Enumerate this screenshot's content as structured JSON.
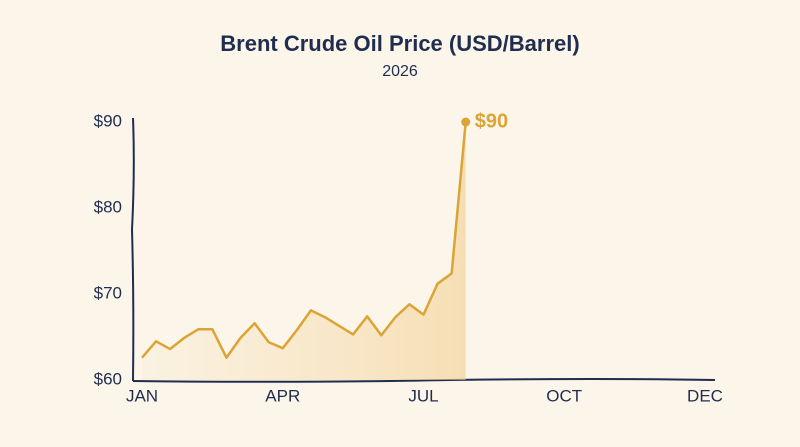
{
  "chart_data": {
    "type": "line",
    "title": "Brent Crude Oil Price (USD/Barrel)",
    "subtitle": "2026",
    "categories": [
      "JAN",
      null,
      null,
      null,
      null,
      null,
      null,
      null,
      null,
      null,
      "APR",
      null,
      null,
      null,
      null,
      null,
      null,
      null,
      null,
      null,
      "JUL",
      null,
      null,
      null,
      null,
      null,
      null,
      null,
      null,
      null,
      "OCT",
      null,
      null,
      null,
      null,
      null,
      null,
      null,
      null,
      null,
      "DEC"
    ],
    "values": [
      62.6,
      64.5,
      63.6,
      64.9,
      65.9,
      65.9,
      62.6,
      64.9,
      66.6,
      64.4,
      63.7,
      65.8,
      68.1,
      67.3,
      66.3,
      65.3,
      67.4,
      65.2,
      67.3,
      68.8,
      67.6,
      71.2,
      72.4,
      90,
      null,
      null,
      null,
      null,
      null,
      null,
      null,
      null,
      null,
      null,
      null,
      null,
      null,
      null,
      null,
      null,
      null
    ],
    "value_labels": [
      null,
      null,
      null,
      null,
      null,
      null,
      null,
      null,
      null,
      null,
      null,
      null,
      null,
      null,
      null,
      null,
      null,
      null,
      null,
      null,
      null,
      null,
      null,
      "$90",
      null,
      null,
      null,
      null,
      null,
      null,
      null,
      null,
      null,
      null,
      null,
      null,
      null,
      null,
      null,
      null,
      null
    ],
    "color": "#dba435",
    "ylim": [
      60,
      90
    ],
    "yticks": [
      {
        "value": 60,
        "label": "$60"
      },
      {
        "value": 70,
        "label": "$70"
      },
      {
        "value": 80,
        "label": "$80"
      },
      {
        "value": 90,
        "label": "$90"
      }
    ]
  }
}
